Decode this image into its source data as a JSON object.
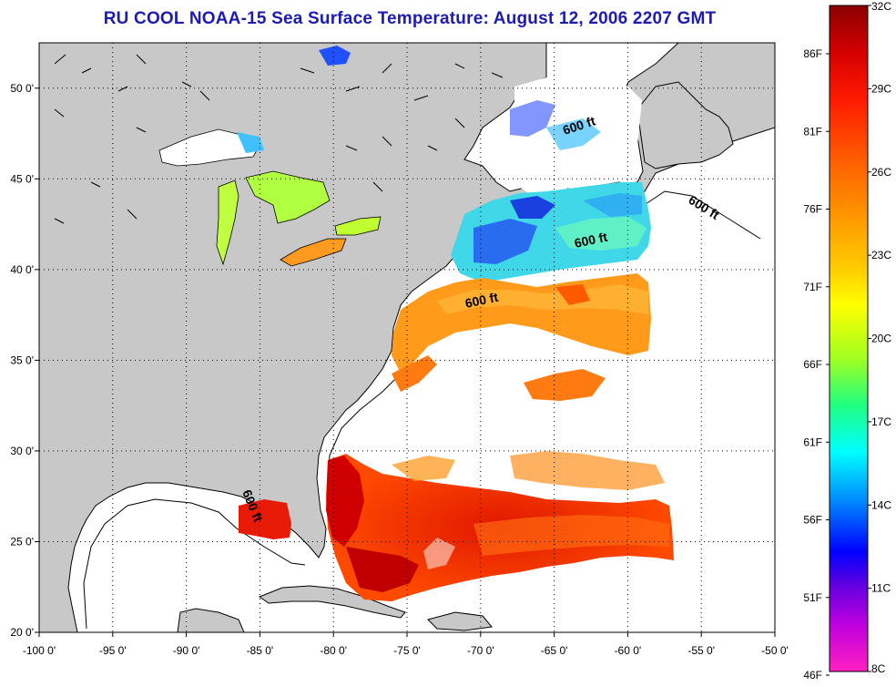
{
  "title": "RU COOL  NOAA-15  Sea Surface Temperature:  August 12, 2006 2207 GMT",
  "map": {
    "lon_range": [
      -100,
      -50
    ],
    "lat_range": [
      20,
      52.5
    ],
    "lon_ticks": [
      -100,
      -95,
      -90,
      -85,
      -80,
      -75,
      -70,
      -65,
      -60,
      -55,
      -50
    ],
    "lon_tick_labels": [
      "-100 0'",
      "-95 0'",
      "-90 0'",
      "-85 0'",
      "-80 0'",
      "-75 0'",
      "-70 0'",
      "-65 0'",
      "-60 0'",
      "-55 0'",
      "-50 0'"
    ],
    "lat_ticks": [
      20,
      25,
      30,
      35,
      40,
      45,
      50
    ],
    "lat_tick_labels": [
      "20 0'",
      "25 0'",
      "30 0'",
      "35 0'",
      "40 0'",
      "45 0'",
      "50 0'"
    ],
    "grid": true,
    "land_color": "#c8c8c8",
    "ocean_color": "#ffffff",
    "isobath_labels": [
      "600 ft",
      "600 ft",
      "600 ft",
      "600 ft",
      "600 ft"
    ]
  },
  "colorbar": {
    "celsius_labels": [
      "32C",
      "29C",
      "26C",
      "23C",
      "20C",
      "17C",
      "14C",
      "11C",
      "8C"
    ],
    "fahrenheit_labels": [
      "86F",
      "81F",
      "76F",
      "71F",
      "66F",
      "61F",
      "56F",
      "51F",
      "46F"
    ],
    "colors": [
      "#8b0000",
      "#ff0000",
      "#ff8c00",
      "#ffff00",
      "#80ff00",
      "#00ffc0",
      "#00a0ff",
      "#0000ff",
      "#8000ff",
      "#ff00ff"
    ]
  }
}
